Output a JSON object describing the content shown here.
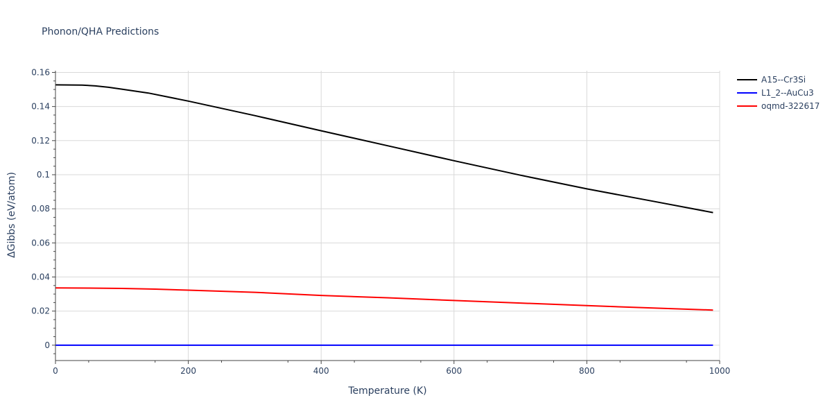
{
  "chart_data": {
    "type": "line",
    "title": "Phonon/QHA Predictions",
    "xlabel": "Temperature (K)",
    "ylabel": "ΔGibbs (eV/atom)",
    "xlim": [
      0,
      1000
    ],
    "ylim": [
      -0.009,
      0.161
    ],
    "xticks": [
      0,
      200,
      400,
      600,
      800,
      1000
    ],
    "xtick_labels": [
      "0",
      "200",
      "400",
      "600",
      "800",
      "1000"
    ],
    "yticks": [
      0,
      0.02,
      0.04,
      0.06,
      0.08,
      0.1,
      0.12,
      0.14,
      0.16
    ],
    "ytick_labels": [
      "0",
      "0.02",
      "0.04",
      "0.06",
      "0.08",
      "0.1",
      "0.12",
      "0.14",
      "0.16"
    ],
    "grid": true,
    "legend_position": "top-right",
    "series": [
      {
        "name": "A15--Cr3Si",
        "color": "#000000",
        "x": [
          0,
          40,
          60,
          80,
          100,
          140,
          200,
          300,
          400,
          500,
          600,
          700,
          800,
          900,
          990
        ],
        "y": [
          0.1527,
          0.1526,
          0.1521,
          0.1513,
          0.1502,
          0.1479,
          0.1432,
          0.1347,
          0.1258,
          0.117,
          0.1082,
          0.0997,
          0.0917,
          0.0844,
          0.0778
        ]
      },
      {
        "name": "L1_2--AuCu3",
        "color": "#0000ff",
        "x": [
          0,
          200,
          400,
          600,
          800,
          990
        ],
        "y": [
          0,
          0,
          0,
          0,
          0,
          0
        ]
      },
      {
        "name": "oqmd-322617",
        "color": "#ff0000",
        "x": [
          0,
          50,
          100,
          150,
          200,
          300,
          400,
          500,
          600,
          700,
          800,
          900,
          990
        ],
        "y": [
          0.0336,
          0.0335,
          0.0333,
          0.0329,
          0.0323,
          0.031,
          0.0292,
          0.0278,
          0.0262,
          0.0247,
          0.0232,
          0.0218,
          0.0206
        ]
      }
    ]
  }
}
